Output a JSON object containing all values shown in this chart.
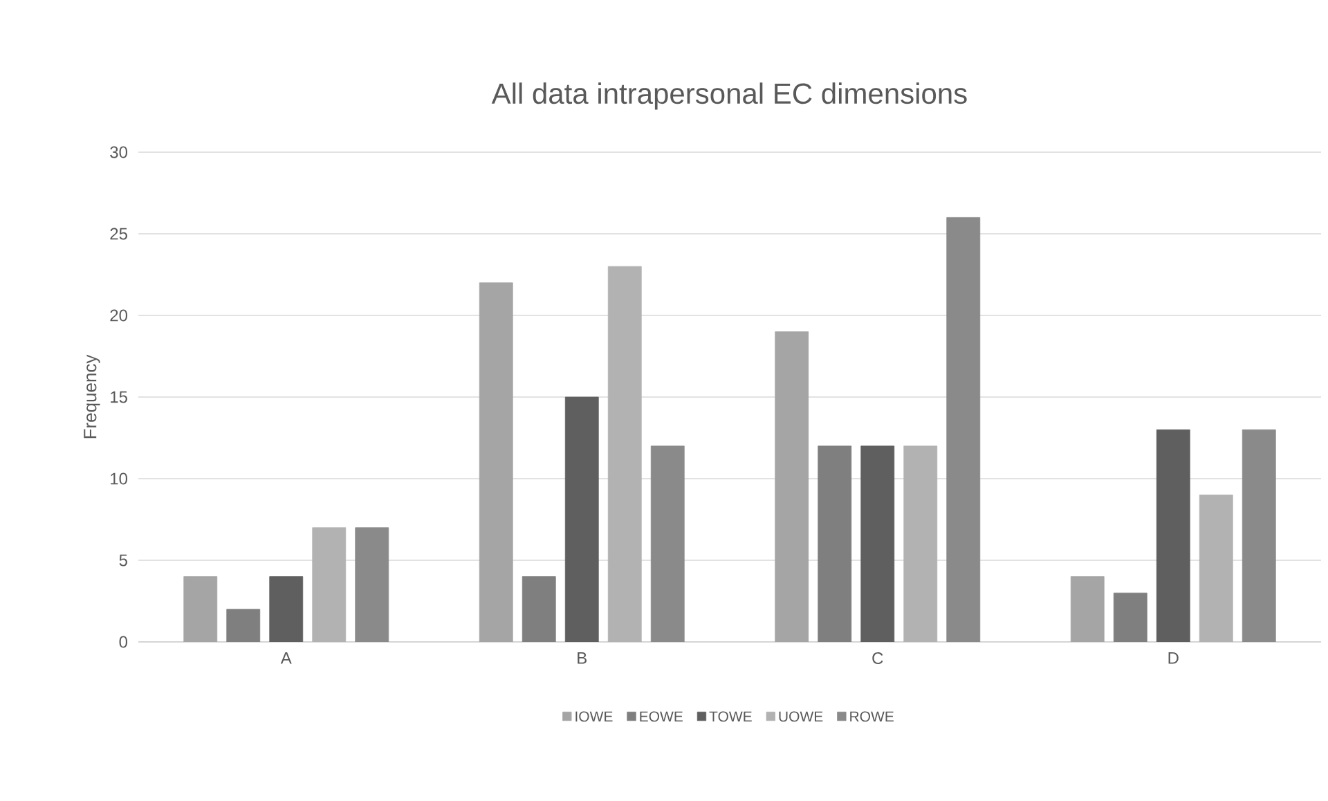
{
  "chart_data": {
    "type": "bar",
    "title": "All data intrapersonal EC dimensions",
    "ylabel": "Frequency",
    "categories": [
      "A",
      "B",
      "C",
      "D"
    ],
    "series": [
      {
        "name": "IOWE",
        "color": "#a5a5a5",
        "values": [
          4,
          22,
          19,
          4
        ]
      },
      {
        "name": "EOWE",
        "color": "#7f7f7f",
        "values": [
          2,
          4,
          12,
          3
        ]
      },
      {
        "name": "TOWE",
        "color": "#5f5f5f",
        "values": [
          4,
          15,
          12,
          13
        ]
      },
      {
        "name": "UOWE",
        "color": "#b2b2b2",
        "values": [
          7,
          23,
          12,
          9
        ]
      },
      {
        "name": "ROWE",
        "color": "#8a8a8a",
        "values": [
          7,
          12,
          26,
          13
        ]
      }
    ],
    "ylim": [
      0,
      30
    ],
    "yticks": [
      0,
      5,
      10,
      15,
      20,
      25,
      30
    ],
    "grid": "y",
    "legend": "bottom"
  }
}
